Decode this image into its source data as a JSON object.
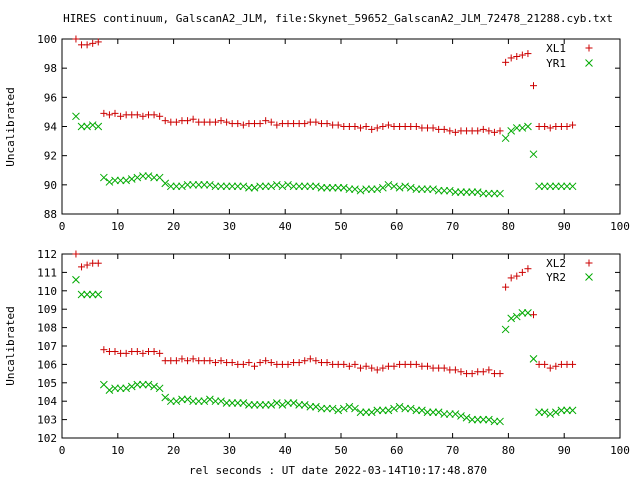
{
  "title": "HIRES continuum, GalscanA2_JLM, file:Skynet_59652_GalscanA2_JLM_72478_21288.cyb.txt",
  "xlabel": "rel seconds : UT date 2022-03-14T10:17:48.870",
  "colors": {
    "red": "#cc0000",
    "green": "#00aa00"
  },
  "chart_data": [
    {
      "type": "scatter",
      "ylabel": "Uncalibrated",
      "xlim": [
        0,
        100
      ],
      "ylim": [
        88,
        100
      ],
      "xticks": [
        0,
        10,
        20,
        30,
        40,
        50,
        60,
        70,
        80,
        90,
        100
      ],
      "yticks": [
        88,
        90,
        92,
        94,
        96,
        98,
        100
      ],
      "legend_position": "top-right",
      "series": [
        {
          "name": "XL1",
          "marker": "plus",
          "color": "#cc0000",
          "x": [
            2.5,
            3.5,
            4.5,
            5.5,
            6.5,
            7.5,
            8.5,
            9.5,
            10.5,
            11.5,
            12.5,
            13.5,
            14.5,
            15.5,
            16.5,
            17.5,
            18.5,
            19.5,
            20.5,
            21.5,
            22.5,
            23.5,
            24.5,
            25.5,
            26.5,
            27.5,
            28.5,
            29.5,
            30.5,
            31.5,
            32.5,
            33.5,
            34.5,
            35.5,
            36.5,
            37.5,
            38.5,
            39.5,
            40.5,
            41.5,
            42.5,
            43.5,
            44.5,
            45.5,
            46.5,
            47.5,
            48.5,
            49.5,
            50.5,
            51.5,
            52.5,
            53.5,
            54.5,
            55.5,
            56.5,
            57.5,
            58.5,
            59.5,
            60.5,
            61.5,
            62.5,
            63.5,
            64.5,
            65.5,
            66.5,
            67.5,
            68.5,
            69.5,
            70.5,
            71.5,
            72.5,
            73.5,
            74.5,
            75.5,
            76.5,
            77.5,
            78.5,
            79.5,
            80.5,
            81.5,
            82.5,
            83.5,
            84.5,
            85.5,
            86.5,
            87.5,
            88.5,
            89.5,
            90.5,
            91.5
          ],
          "y": [
            100.0,
            99.6,
            99.6,
            99.7,
            99.8,
            94.9,
            94.8,
            94.9,
            94.7,
            94.8,
            94.8,
            94.8,
            94.7,
            94.8,
            94.8,
            94.7,
            94.4,
            94.3,
            94.3,
            94.4,
            94.4,
            94.5,
            94.3,
            94.3,
            94.3,
            94.3,
            94.4,
            94.3,
            94.2,
            94.2,
            94.1,
            94.2,
            94.2,
            94.2,
            94.4,
            94.3,
            94.1,
            94.2,
            94.2,
            94.2,
            94.2,
            94.2,
            94.3,
            94.3,
            94.2,
            94.2,
            94.1,
            94.1,
            94.0,
            94.0,
            94.0,
            93.9,
            94.0,
            93.8,
            93.9,
            94.0,
            94.1,
            94.0,
            94.0,
            94.0,
            94.0,
            94.0,
            93.9,
            93.9,
            93.9,
            93.8,
            93.8,
            93.7,
            93.6,
            93.7,
            93.7,
            93.7,
            93.7,
            93.8,
            93.7,
            93.6,
            93.7,
            98.4,
            98.7,
            98.8,
            98.9,
            99.0,
            96.8,
            94.0,
            94.0,
            93.9,
            94.0,
            94.0,
            94.0,
            94.1
          ]
        },
        {
          "name": "YR1",
          "marker": "cross",
          "color": "#00aa00",
          "x": [
            2.5,
            3.5,
            4.5,
            5.5,
            6.5,
            7.5,
            8.5,
            9.5,
            10.5,
            11.5,
            12.5,
            13.5,
            14.5,
            15.5,
            16.5,
            17.5,
            18.5,
            19.5,
            20.5,
            21.5,
            22.5,
            23.5,
            24.5,
            25.5,
            26.5,
            27.5,
            28.5,
            29.5,
            30.5,
            31.5,
            32.5,
            33.5,
            34.5,
            35.5,
            36.5,
            37.5,
            38.5,
            39.5,
            40.5,
            41.5,
            42.5,
            43.5,
            44.5,
            45.5,
            46.5,
            47.5,
            48.5,
            49.5,
            50.5,
            51.5,
            52.5,
            53.5,
            54.5,
            55.5,
            56.5,
            57.5,
            58.5,
            59.5,
            60.5,
            61.5,
            62.5,
            63.5,
            64.5,
            65.5,
            66.5,
            67.5,
            68.5,
            69.5,
            70.5,
            71.5,
            72.5,
            73.5,
            74.5,
            75.5,
            76.5,
            77.5,
            78.5,
            79.5,
            80.5,
            81.5,
            82.5,
            83.5,
            84.5,
            85.5,
            86.5,
            87.5,
            88.5,
            89.5,
            90.5,
            91.5
          ],
          "y": [
            94.7,
            94.0,
            94.0,
            94.1,
            94.0,
            90.5,
            90.2,
            90.3,
            90.3,
            90.3,
            90.4,
            90.5,
            90.6,
            90.6,
            90.5,
            90.5,
            90.1,
            89.9,
            89.9,
            89.9,
            90.0,
            90.0,
            90.0,
            90.0,
            90.0,
            89.9,
            89.9,
            89.9,
            89.9,
            89.9,
            89.9,
            89.8,
            89.8,
            89.9,
            89.9,
            89.9,
            90.0,
            89.9,
            90.0,
            89.9,
            89.9,
            89.9,
            89.9,
            89.9,
            89.8,
            89.8,
            89.8,
            89.8,
            89.8,
            89.7,
            89.7,
            89.6,
            89.7,
            89.7,
            89.7,
            89.8,
            90.0,
            89.9,
            89.8,
            89.9,
            89.8,
            89.7,
            89.7,
            89.7,
            89.7,
            89.6,
            89.6,
            89.6,
            89.5,
            89.5,
            89.5,
            89.5,
            89.5,
            89.4,
            89.4,
            89.4,
            89.4,
            93.2,
            93.7,
            93.9,
            93.9,
            94.0,
            92.1,
            89.9,
            89.9,
            89.9,
            89.9,
            89.9,
            89.9,
            89.9
          ]
        }
      ]
    },
    {
      "type": "scatter",
      "ylabel": "Uncalibrated",
      "xlim": [
        0,
        100
      ],
      "ylim": [
        102,
        112
      ],
      "xticks": [
        0,
        10,
        20,
        30,
        40,
        50,
        60,
        70,
        80,
        90,
        100
      ],
      "yticks": [
        102,
        103,
        104,
        105,
        106,
        107,
        108,
        109,
        110,
        111,
        112
      ],
      "legend_position": "top-right",
      "series": [
        {
          "name": "XL2",
          "marker": "plus",
          "color": "#cc0000",
          "x": [
            2.5,
            3.5,
            4.5,
            5.5,
            6.5,
            7.5,
            8.5,
            9.5,
            10.5,
            11.5,
            12.5,
            13.5,
            14.5,
            15.5,
            16.5,
            17.5,
            18.5,
            19.5,
            20.5,
            21.5,
            22.5,
            23.5,
            24.5,
            25.5,
            26.5,
            27.5,
            28.5,
            29.5,
            30.5,
            31.5,
            32.5,
            33.5,
            34.5,
            35.5,
            36.5,
            37.5,
            38.5,
            39.5,
            40.5,
            41.5,
            42.5,
            43.5,
            44.5,
            45.5,
            46.5,
            47.5,
            48.5,
            49.5,
            50.5,
            51.5,
            52.5,
            53.5,
            54.5,
            55.5,
            56.5,
            57.5,
            58.5,
            59.5,
            60.5,
            61.5,
            62.5,
            63.5,
            64.5,
            65.5,
            66.5,
            67.5,
            68.5,
            69.5,
            70.5,
            71.5,
            72.5,
            73.5,
            74.5,
            75.5,
            76.5,
            77.5,
            78.5,
            79.5,
            80.5,
            81.5,
            82.5,
            83.5,
            84.5,
            85.5,
            86.5,
            87.5,
            88.5,
            89.5,
            90.5,
            91.5
          ],
          "y": [
            112.0,
            111.3,
            111.4,
            111.5,
            111.5,
            106.8,
            106.7,
            106.7,
            106.6,
            106.6,
            106.7,
            106.7,
            106.6,
            106.7,
            106.7,
            106.6,
            106.2,
            106.2,
            106.2,
            106.3,
            106.2,
            106.3,
            106.2,
            106.2,
            106.2,
            106.1,
            106.2,
            106.1,
            106.1,
            106.0,
            106.0,
            106.1,
            105.9,
            106.1,
            106.2,
            106.1,
            106.0,
            106.0,
            106.0,
            106.1,
            106.1,
            106.2,
            106.3,
            106.2,
            106.1,
            106.1,
            106.0,
            106.0,
            106.0,
            105.9,
            106.0,
            105.8,
            105.9,
            105.8,
            105.7,
            105.8,
            105.9,
            105.9,
            106.0,
            106.0,
            106.0,
            106.0,
            105.9,
            105.9,
            105.8,
            105.8,
            105.8,
            105.7,
            105.7,
            105.6,
            105.5,
            105.5,
            105.6,
            105.6,
            105.7,
            105.5,
            105.5,
            110.2,
            110.7,
            110.8,
            111.0,
            111.2,
            108.7,
            106.0,
            106.0,
            105.8,
            105.9,
            106.0,
            106.0,
            106.0
          ]
        },
        {
          "name": "YR2",
          "marker": "cross",
          "color": "#00aa00",
          "x": [
            2.5,
            3.5,
            4.5,
            5.5,
            6.5,
            7.5,
            8.5,
            9.5,
            10.5,
            11.5,
            12.5,
            13.5,
            14.5,
            15.5,
            16.5,
            17.5,
            18.5,
            19.5,
            20.5,
            21.5,
            22.5,
            23.5,
            24.5,
            25.5,
            26.5,
            27.5,
            28.5,
            29.5,
            30.5,
            31.5,
            32.5,
            33.5,
            34.5,
            35.5,
            36.5,
            37.5,
            38.5,
            39.5,
            40.5,
            41.5,
            42.5,
            43.5,
            44.5,
            45.5,
            46.5,
            47.5,
            48.5,
            49.5,
            50.5,
            51.5,
            52.5,
            53.5,
            54.5,
            55.5,
            56.5,
            57.5,
            58.5,
            59.5,
            60.5,
            61.5,
            62.5,
            63.5,
            64.5,
            65.5,
            66.5,
            67.5,
            68.5,
            69.5,
            70.5,
            71.5,
            72.5,
            73.5,
            74.5,
            75.5,
            76.5,
            77.5,
            78.5,
            79.5,
            80.5,
            81.5,
            82.5,
            83.5,
            84.5,
            85.5,
            86.5,
            87.5,
            88.5,
            89.5,
            90.5,
            91.5
          ],
          "y": [
            110.6,
            109.8,
            109.8,
            109.8,
            109.8,
            104.9,
            104.6,
            104.7,
            104.7,
            104.7,
            104.8,
            104.9,
            104.9,
            104.9,
            104.8,
            104.7,
            104.2,
            104.0,
            104.0,
            104.1,
            104.1,
            104.0,
            104.0,
            104.0,
            104.1,
            104.0,
            104.0,
            103.9,
            103.9,
            103.9,
            103.9,
            103.8,
            103.8,
            103.8,
            103.8,
            103.8,
            103.9,
            103.8,
            103.9,
            103.9,
            103.8,
            103.8,
            103.7,
            103.7,
            103.6,
            103.6,
            103.6,
            103.5,
            103.6,
            103.7,
            103.6,
            103.4,
            103.4,
            103.4,
            103.5,
            103.5,
            103.5,
            103.6,
            103.7,
            103.6,
            103.6,
            103.5,
            103.5,
            103.4,
            103.4,
            103.4,
            103.3,
            103.3,
            103.3,
            103.2,
            103.1,
            103.0,
            103.0,
            103.0,
            103.0,
            102.9,
            102.9,
            107.9,
            108.5,
            108.6,
            108.8,
            108.8,
            106.3,
            103.4,
            103.4,
            103.3,
            103.4,
            103.5,
            103.5,
            103.5
          ]
        }
      ]
    }
  ]
}
